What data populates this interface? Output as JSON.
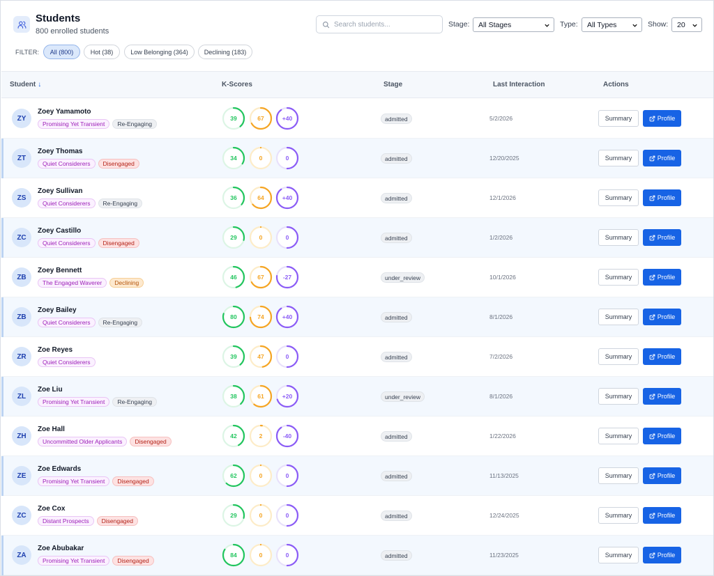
{
  "header": {
    "title": "Students",
    "subtitle": "800 enrolled students",
    "icon": "users-icon"
  },
  "search": {
    "placeholder": "Search students...",
    "value": ""
  },
  "filters": {
    "stage_label": "Stage:",
    "stage_value": "All Stages",
    "type_label": "Type:",
    "type_value": "All Types",
    "show_label": "Show:",
    "show_value": "20",
    "filter_label": "FILTER:",
    "chips": [
      {
        "label": "All (800)",
        "active": true
      },
      {
        "label": "Hot (38)",
        "active": false
      },
      {
        "label": "Low Belonging (364)",
        "active": false
      },
      {
        "label": "Declining (183)",
        "active": false
      }
    ]
  },
  "table": {
    "columns": {
      "student": "Student",
      "sort_arrow": "↓",
      "kscores": "K-Scores",
      "stage": "Stage",
      "last_interaction": "Last Interaction",
      "actions": "Actions"
    },
    "summary_label": "Summary",
    "profile_label": "Profile",
    "rows": [
      {
        "initials": "ZY",
        "name": "Zoey Yamamoto",
        "tags": [
          {
            "text": "Promising Yet Transient",
            "kind": "purple"
          },
          {
            "text": "Re-Engaging",
            "kind": "gray"
          }
        ],
        "s1": 39,
        "s2": 67,
        "s3": "+40",
        "stage": "admitted",
        "date": "5/2/2026"
      },
      {
        "initials": "ZT",
        "name": "Zoey Thomas",
        "tags": [
          {
            "text": "Quiet Considerers",
            "kind": "purple"
          },
          {
            "text": "Disengaged",
            "kind": "red"
          }
        ],
        "s1": 34,
        "s2": 0,
        "s3": "0",
        "stage": "admitted",
        "date": "12/20/2025"
      },
      {
        "initials": "ZS",
        "name": "Zoey Sullivan",
        "tags": [
          {
            "text": "Quiet Considerers",
            "kind": "purple"
          },
          {
            "text": "Re-Engaging",
            "kind": "gray"
          }
        ],
        "s1": 36,
        "s2": 64,
        "s3": "+40",
        "stage": "admitted",
        "date": "12/1/2026"
      },
      {
        "initials": "ZC",
        "name": "Zoey Castillo",
        "tags": [
          {
            "text": "Quiet Considerers",
            "kind": "purple"
          },
          {
            "text": "Disengaged",
            "kind": "red"
          }
        ],
        "s1": 29,
        "s2": 0,
        "s3": "0",
        "stage": "admitted",
        "date": "1/2/2026"
      },
      {
        "initials": "ZB",
        "name": "Zoey Bennett",
        "tags": [
          {
            "text": "The Engaged Waverer",
            "kind": "purple"
          },
          {
            "text": "Declining",
            "kind": "orange"
          }
        ],
        "s1": 46,
        "s2": 67,
        "s3": "-27",
        "stage": "under_review",
        "date": "10/1/2026"
      },
      {
        "initials": "ZB",
        "name": "Zoey Bailey",
        "tags": [
          {
            "text": "Quiet Considerers",
            "kind": "purple"
          },
          {
            "text": "Re-Engaging",
            "kind": "gray"
          }
        ],
        "s1": 80,
        "s2": 74,
        "s3": "+40",
        "stage": "admitted",
        "date": "8/1/2026"
      },
      {
        "initials": "ZR",
        "name": "Zoe Reyes",
        "tags": [
          {
            "text": "Quiet Considerers",
            "kind": "purple"
          }
        ],
        "s1": 39,
        "s2": 47,
        "s3": "0",
        "stage": "admitted",
        "date": "7/2/2026"
      },
      {
        "initials": "ZL",
        "name": "Zoe Liu",
        "tags": [
          {
            "text": "Promising Yet Transient",
            "kind": "purple"
          },
          {
            "text": "Re-Engaging",
            "kind": "gray"
          }
        ],
        "s1": 38,
        "s2": 61,
        "s3": "+20",
        "stage": "under_review",
        "date": "8/1/2026"
      },
      {
        "initials": "ZH",
        "name": "Zoe Hall",
        "tags": [
          {
            "text": "Uncommitted Older Applicants",
            "kind": "purple"
          },
          {
            "text": "Disengaged",
            "kind": "red"
          }
        ],
        "s1": 42,
        "s2": 2,
        "s3": "-40",
        "stage": "admitted",
        "date": "1/22/2026"
      },
      {
        "initials": "ZE",
        "name": "Zoe Edwards",
        "tags": [
          {
            "text": "Promising Yet Transient",
            "kind": "purple"
          },
          {
            "text": "Disengaged",
            "kind": "red"
          }
        ],
        "s1": 62,
        "s2": 0,
        "s3": "0",
        "stage": "admitted",
        "date": "11/13/2025"
      },
      {
        "initials": "ZC",
        "name": "Zoe Cox",
        "tags": [
          {
            "text": "Distant Prospects",
            "kind": "purple"
          },
          {
            "text": "Disengaged",
            "kind": "red"
          }
        ],
        "s1": 29,
        "s2": 0,
        "s3": "0",
        "stage": "admitted",
        "date": "12/24/2025"
      },
      {
        "initials": "ZA",
        "name": "Zoe Abubakar",
        "tags": [
          {
            "text": "Promising Yet Transient",
            "kind": "purple"
          },
          {
            "text": "Disengaged",
            "kind": "red"
          }
        ],
        "s1": 84,
        "s2": 0,
        "s3": "0",
        "stage": "admitted",
        "date": "11/23/2025"
      }
    ]
  },
  "colors": {
    "accent": "#1763e5",
    "score_green": "#22c55e",
    "score_orange": "#f5a524",
    "score_purple": "#8b5cf6"
  }
}
